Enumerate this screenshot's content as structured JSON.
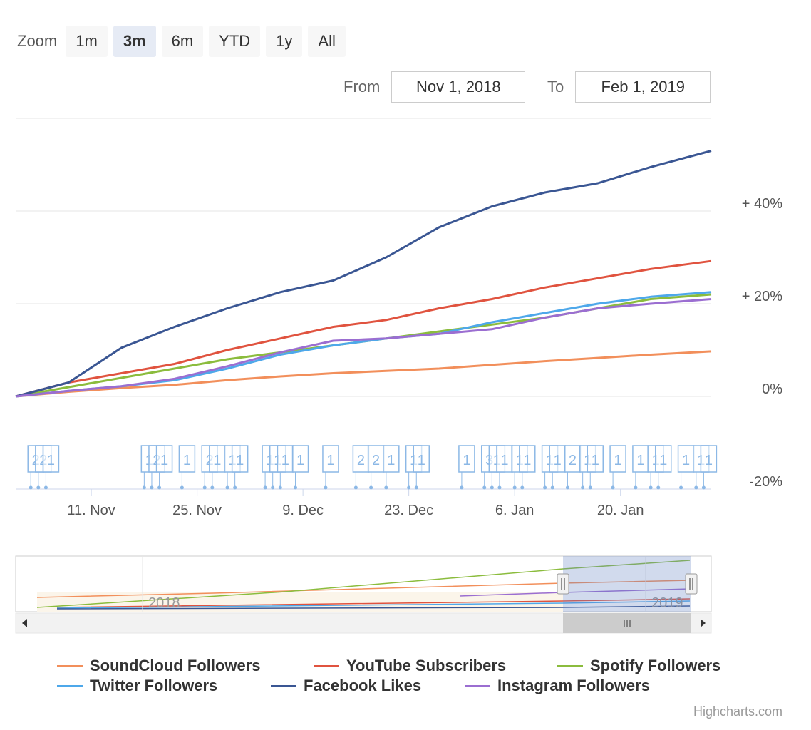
{
  "zoom": {
    "label": "Zoom",
    "buttons": [
      {
        "label": "1m",
        "active": false
      },
      {
        "label": "3m",
        "active": true
      },
      {
        "label": "6m",
        "active": false
      },
      {
        "label": "YTD",
        "active": false
      },
      {
        "label": "1y",
        "active": false
      },
      {
        "label": "All",
        "active": false
      }
    ]
  },
  "range": {
    "from_label": "From",
    "from_value": "Nov 1, 2018",
    "to_label": "To",
    "to_value": "Feb 1, 2019"
  },
  "credits": "Highcharts.com",
  "chart_data": {
    "type": "line",
    "x": [
      "2018-11-01",
      "2018-11-08",
      "2018-11-15",
      "2018-11-22",
      "2018-11-29",
      "2018-12-06",
      "2018-12-13",
      "2018-12-20",
      "2018-12-27",
      "2019-01-03",
      "2019-01-10",
      "2019-01-17",
      "2019-01-24",
      "2019-01-31"
    ],
    "ylabel": "",
    "ylim": [
      -20,
      60
    ],
    "y_tick_labels": [
      "-20%",
      "0%",
      "+ 20%",
      "+ 40%"
    ],
    "x_tick_labels": [
      "11. Nov",
      "25. Nov",
      "9. Dec",
      "23. Dec",
      "6. Jan",
      "20. Jan"
    ],
    "grid": true,
    "legend_position": "bottom",
    "series": [
      {
        "name": "SoundCloud Followers",
        "color": "#f28f5b",
        "values": [
          0,
          1.0,
          1.8,
          2.5,
          3.5,
          4.3,
          5.0,
          5.5,
          6.0,
          6.8,
          7.6,
          8.3,
          9.0,
          9.7
        ]
      },
      {
        "name": "YouTube Subscribers",
        "color": "#e0533f",
        "values": [
          0,
          3.0,
          5.0,
          7.0,
          10.0,
          12.5,
          15.0,
          16.5,
          19.0,
          21.0,
          23.5,
          25.5,
          27.5,
          29.2
        ]
      },
      {
        "name": "Spotify Followers",
        "color": "#8bbc3d",
        "values": [
          0,
          2.0,
          4.0,
          6.0,
          8.0,
          9.5,
          11.0,
          12.5,
          14.0,
          15.5,
          17.0,
          19.0,
          21.0,
          22.0
        ]
      },
      {
        "name": "Twitter Followers",
        "color": "#4ea8ea",
        "values": [
          0,
          1.2,
          2.2,
          3.5,
          6.0,
          9.0,
          11.0,
          12.5,
          13.5,
          16.0,
          18.0,
          20.0,
          21.5,
          22.5
        ]
      },
      {
        "name": "Facebook Likes",
        "color": "#3a5693",
        "values": [
          0,
          3.0,
          10.5,
          15.0,
          19.0,
          22.5,
          25.0,
          30.0,
          36.5,
          41.0,
          44.0,
          46.0,
          49.5,
          53.0
        ]
      },
      {
        "name": "Instagram Followers",
        "color": "#9b6ed1",
        "values": [
          0,
          1.2,
          2.2,
          3.8,
          6.5,
          9.5,
          12.0,
          12.5,
          13.5,
          14.5,
          17.0,
          19.0,
          20.0,
          21.0
        ]
      }
    ],
    "flags": [
      {
        "date": "2018-11-03",
        "label": "2"
      },
      {
        "date": "2018-11-04",
        "label": "2"
      },
      {
        "date": "2018-11-05",
        "label": "1"
      },
      {
        "date": "2018-11-18",
        "label": "1"
      },
      {
        "date": "2018-11-19",
        "label": "2"
      },
      {
        "date": "2018-11-20",
        "label": "1"
      },
      {
        "date": "2018-11-23",
        "label": "1"
      },
      {
        "date": "2018-11-26",
        "label": "2"
      },
      {
        "date": "2018-11-27",
        "label": "1"
      },
      {
        "date": "2018-11-29",
        "label": "1"
      },
      {
        "date": "2018-11-30",
        "label": "1"
      },
      {
        "date": "2018-12-04",
        "label": "1"
      },
      {
        "date": "2018-12-05",
        "label": "1"
      },
      {
        "date": "2018-12-06",
        "label": "1"
      },
      {
        "date": "2018-12-08",
        "label": "1"
      },
      {
        "date": "2018-12-12",
        "label": "1"
      },
      {
        "date": "2018-12-16",
        "label": "2"
      },
      {
        "date": "2018-12-18",
        "label": "2"
      },
      {
        "date": "2018-12-20",
        "label": "1"
      },
      {
        "date": "2018-12-23",
        "label": "1"
      },
      {
        "date": "2018-12-24",
        "label": "1"
      },
      {
        "date": "2018-12-30",
        "label": "1"
      },
      {
        "date": "2019-01-02",
        "label": "3"
      },
      {
        "date": "2019-01-03",
        "label": "1"
      },
      {
        "date": "2019-01-04",
        "label": "1"
      },
      {
        "date": "2019-01-06",
        "label": "1"
      },
      {
        "date": "2019-01-07",
        "label": "1"
      },
      {
        "date": "2019-01-10",
        "label": "1"
      },
      {
        "date": "2019-01-11",
        "label": "1"
      },
      {
        "date": "2019-01-13",
        "label": "2"
      },
      {
        "date": "2019-01-15",
        "label": "1"
      },
      {
        "date": "2019-01-16",
        "label": "1"
      },
      {
        "date": "2019-01-19",
        "label": "1"
      },
      {
        "date": "2019-01-22",
        "label": "1"
      },
      {
        "date": "2019-01-24",
        "label": "1"
      },
      {
        "date": "2019-01-25",
        "label": "1"
      },
      {
        "date": "2019-01-28",
        "label": "1"
      },
      {
        "date": "2019-01-30",
        "label": "1"
      },
      {
        "date": "2019-01-31",
        "label": "1"
      }
    ],
    "navigator": {
      "year_labels": [
        "2018",
        "2019"
      ],
      "selected_range": [
        "2018-11-01",
        "2019-02-01"
      ]
    }
  }
}
